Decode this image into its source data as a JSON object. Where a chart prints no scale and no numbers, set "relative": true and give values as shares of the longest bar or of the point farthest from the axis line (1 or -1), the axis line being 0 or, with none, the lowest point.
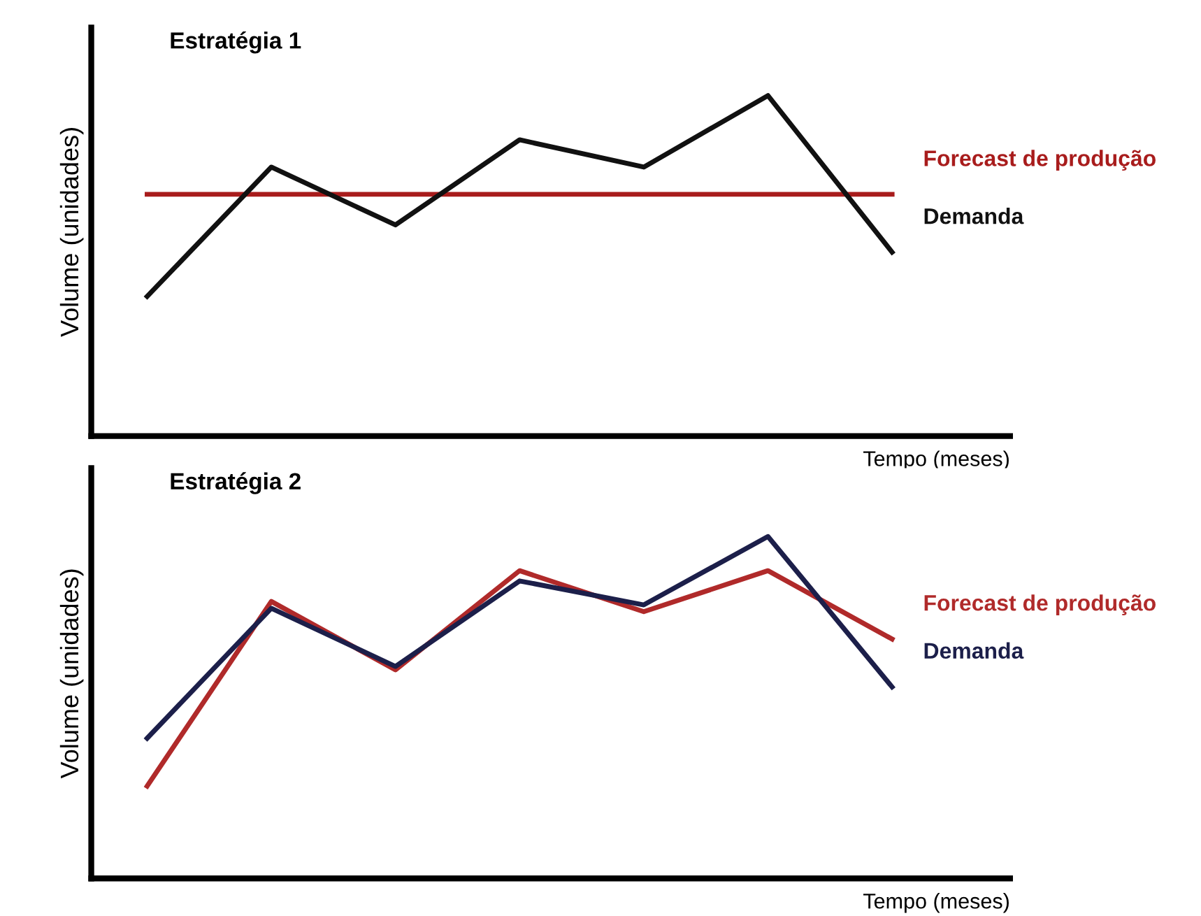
{
  "chart_data": [
    {
      "type": "line",
      "title": "Estratégia 1",
      "xlabel": "Tempo (meses)",
      "ylabel": "Volume (unidades)",
      "relative": true,
      "legend": false,
      "categories": [
        null,
        null,
        null,
        null,
        null,
        null,
        null
      ],
      "series": [
        {
          "name": "Forecast de produção",
          "color": "#a81c1c",
          "values": [
            0.71,
            0.71,
            0.71,
            0.71,
            0.71,
            0.71,
            0.71
          ]
        },
        {
          "name": "Demanda",
          "color": "#111111",
          "values": [
            0.41,
            0.79,
            0.62,
            0.87,
            0.79,
            1.0,
            0.54
          ]
        }
      ]
    },
    {
      "type": "line",
      "title": "Estratégia 2",
      "xlabel": "Tempo (meses)",
      "ylabel": "Volume (unidades)",
      "relative": true,
      "legend": false,
      "categories": [
        null,
        null,
        null,
        null,
        null,
        null,
        null
      ],
      "series": [
        {
          "name": "Forecast de produção",
          "color": "#b02a2a",
          "values": [
            0.27,
            0.81,
            0.61,
            0.9,
            0.78,
            0.9,
            0.7
          ]
        },
        {
          "name": "Demanda",
          "color": "#1c1f4a",
          "values": [
            0.41,
            0.79,
            0.62,
            0.87,
            0.8,
            1.0,
            0.56
          ]
        }
      ]
    }
  ]
}
